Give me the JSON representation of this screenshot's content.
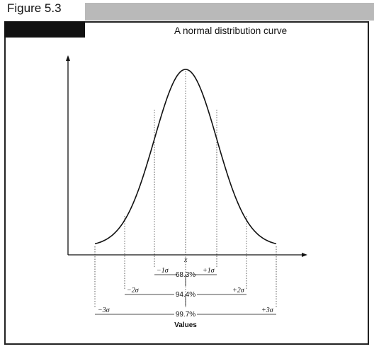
{
  "figure_label": "Figure 5.3",
  "title": "A normal distribution curve",
  "xaxis": {
    "mean_label": "x",
    "label": "Values"
  },
  "bands": [
    {
      "left": "−1σ",
      "right": "+1σ",
      "percent": "68.3%"
    },
    {
      "left": "−2σ",
      "right": "+2σ",
      "percent": "94.4%"
    },
    {
      "left": "−3σ",
      "right": "+3σ",
      "percent": "99.7%"
    }
  ],
  "colors": {
    "header_bar": "#b9b9b9",
    "black_bar": "#111111",
    "line": "#111111"
  }
}
